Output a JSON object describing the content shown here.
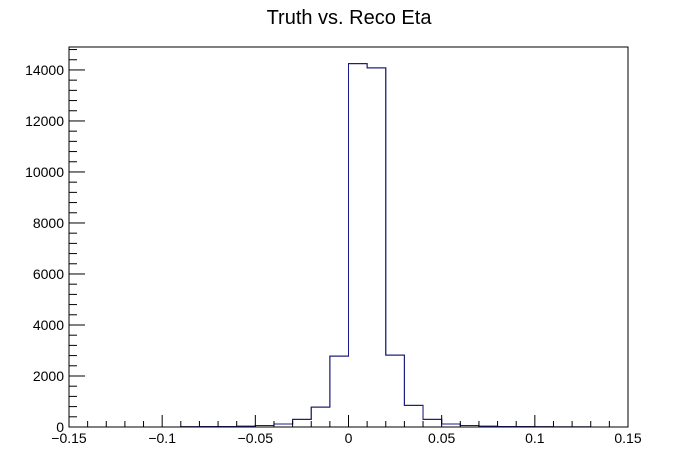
{
  "chart_data": {
    "type": "bar",
    "title": "Truth vs. Reco Eta",
    "xlabel": "",
    "ylabel": "",
    "xlim": [
      -0.15,
      0.15
    ],
    "ylim": [
      0,
      14900
    ],
    "x_ticks": [
      -0.15,
      -0.1,
      -0.05,
      0,
      0.05,
      0.1,
      0.15
    ],
    "x_tick_labels": [
      "−0.15",
      "−0.1",
      "−0.05",
      "0",
      "0.05",
      "0.1",
      "0.15"
    ],
    "y_ticks": [
      0,
      2000,
      4000,
      6000,
      8000,
      10000,
      12000,
      14000
    ],
    "y_tick_labels": [
      "0",
      "2000",
      "4000",
      "6000",
      "8000",
      "10000",
      "12000",
      "14000"
    ],
    "grid": false,
    "legend": "none",
    "series": [
      {
        "color": "#000000",
        "style": "step",
        "bin_edges": [
          -0.15,
          -0.14,
          -0.13,
          -0.12,
          -0.11,
          -0.1,
          -0.09,
          -0.08,
          -0.07,
          -0.06,
          -0.05,
          -0.04,
          -0.03,
          -0.02,
          -0.01,
          0,
          0.01,
          0.02,
          0.03,
          0.04,
          0.05,
          0.06,
          0.07,
          0.08,
          0.09,
          0.1,
          0.11,
          0.12,
          0.13,
          0.14,
          0.15
        ],
        "values": [
          0,
          0,
          0,
          0,
          0,
          0,
          10,
          15,
          20,
          30,
          60,
          120,
          300,
          780,
          2780,
          14250,
          14080,
          2820,
          850,
          300,
          120,
          60,
          30,
          20,
          15,
          10,
          5,
          3,
          0,
          0
        ]
      },
      {
        "color": "#1a1a8c",
        "style": "step",
        "bin_edges": [
          -0.15,
          -0.14,
          -0.13,
          -0.12,
          -0.11,
          -0.1,
          -0.09,
          -0.08,
          -0.07,
          -0.06,
          -0.05,
          -0.04,
          -0.03,
          -0.02,
          -0.01,
          0,
          0.01,
          0.02,
          0.03,
          0.04,
          0.05,
          0.06,
          0.07,
          0.08,
          0.09,
          0.1,
          0.11,
          0.12,
          0.13,
          0.14,
          0.15
        ],
        "values": [
          0,
          0,
          0,
          0,
          0,
          0,
          10,
          15,
          20,
          30,
          60,
          120,
          300,
          780,
          2780,
          14250,
          14080,
          2820,
          850,
          300,
          120,
          60,
          30,
          20,
          15,
          10,
          5,
          3,
          0,
          0
        ]
      }
    ]
  }
}
